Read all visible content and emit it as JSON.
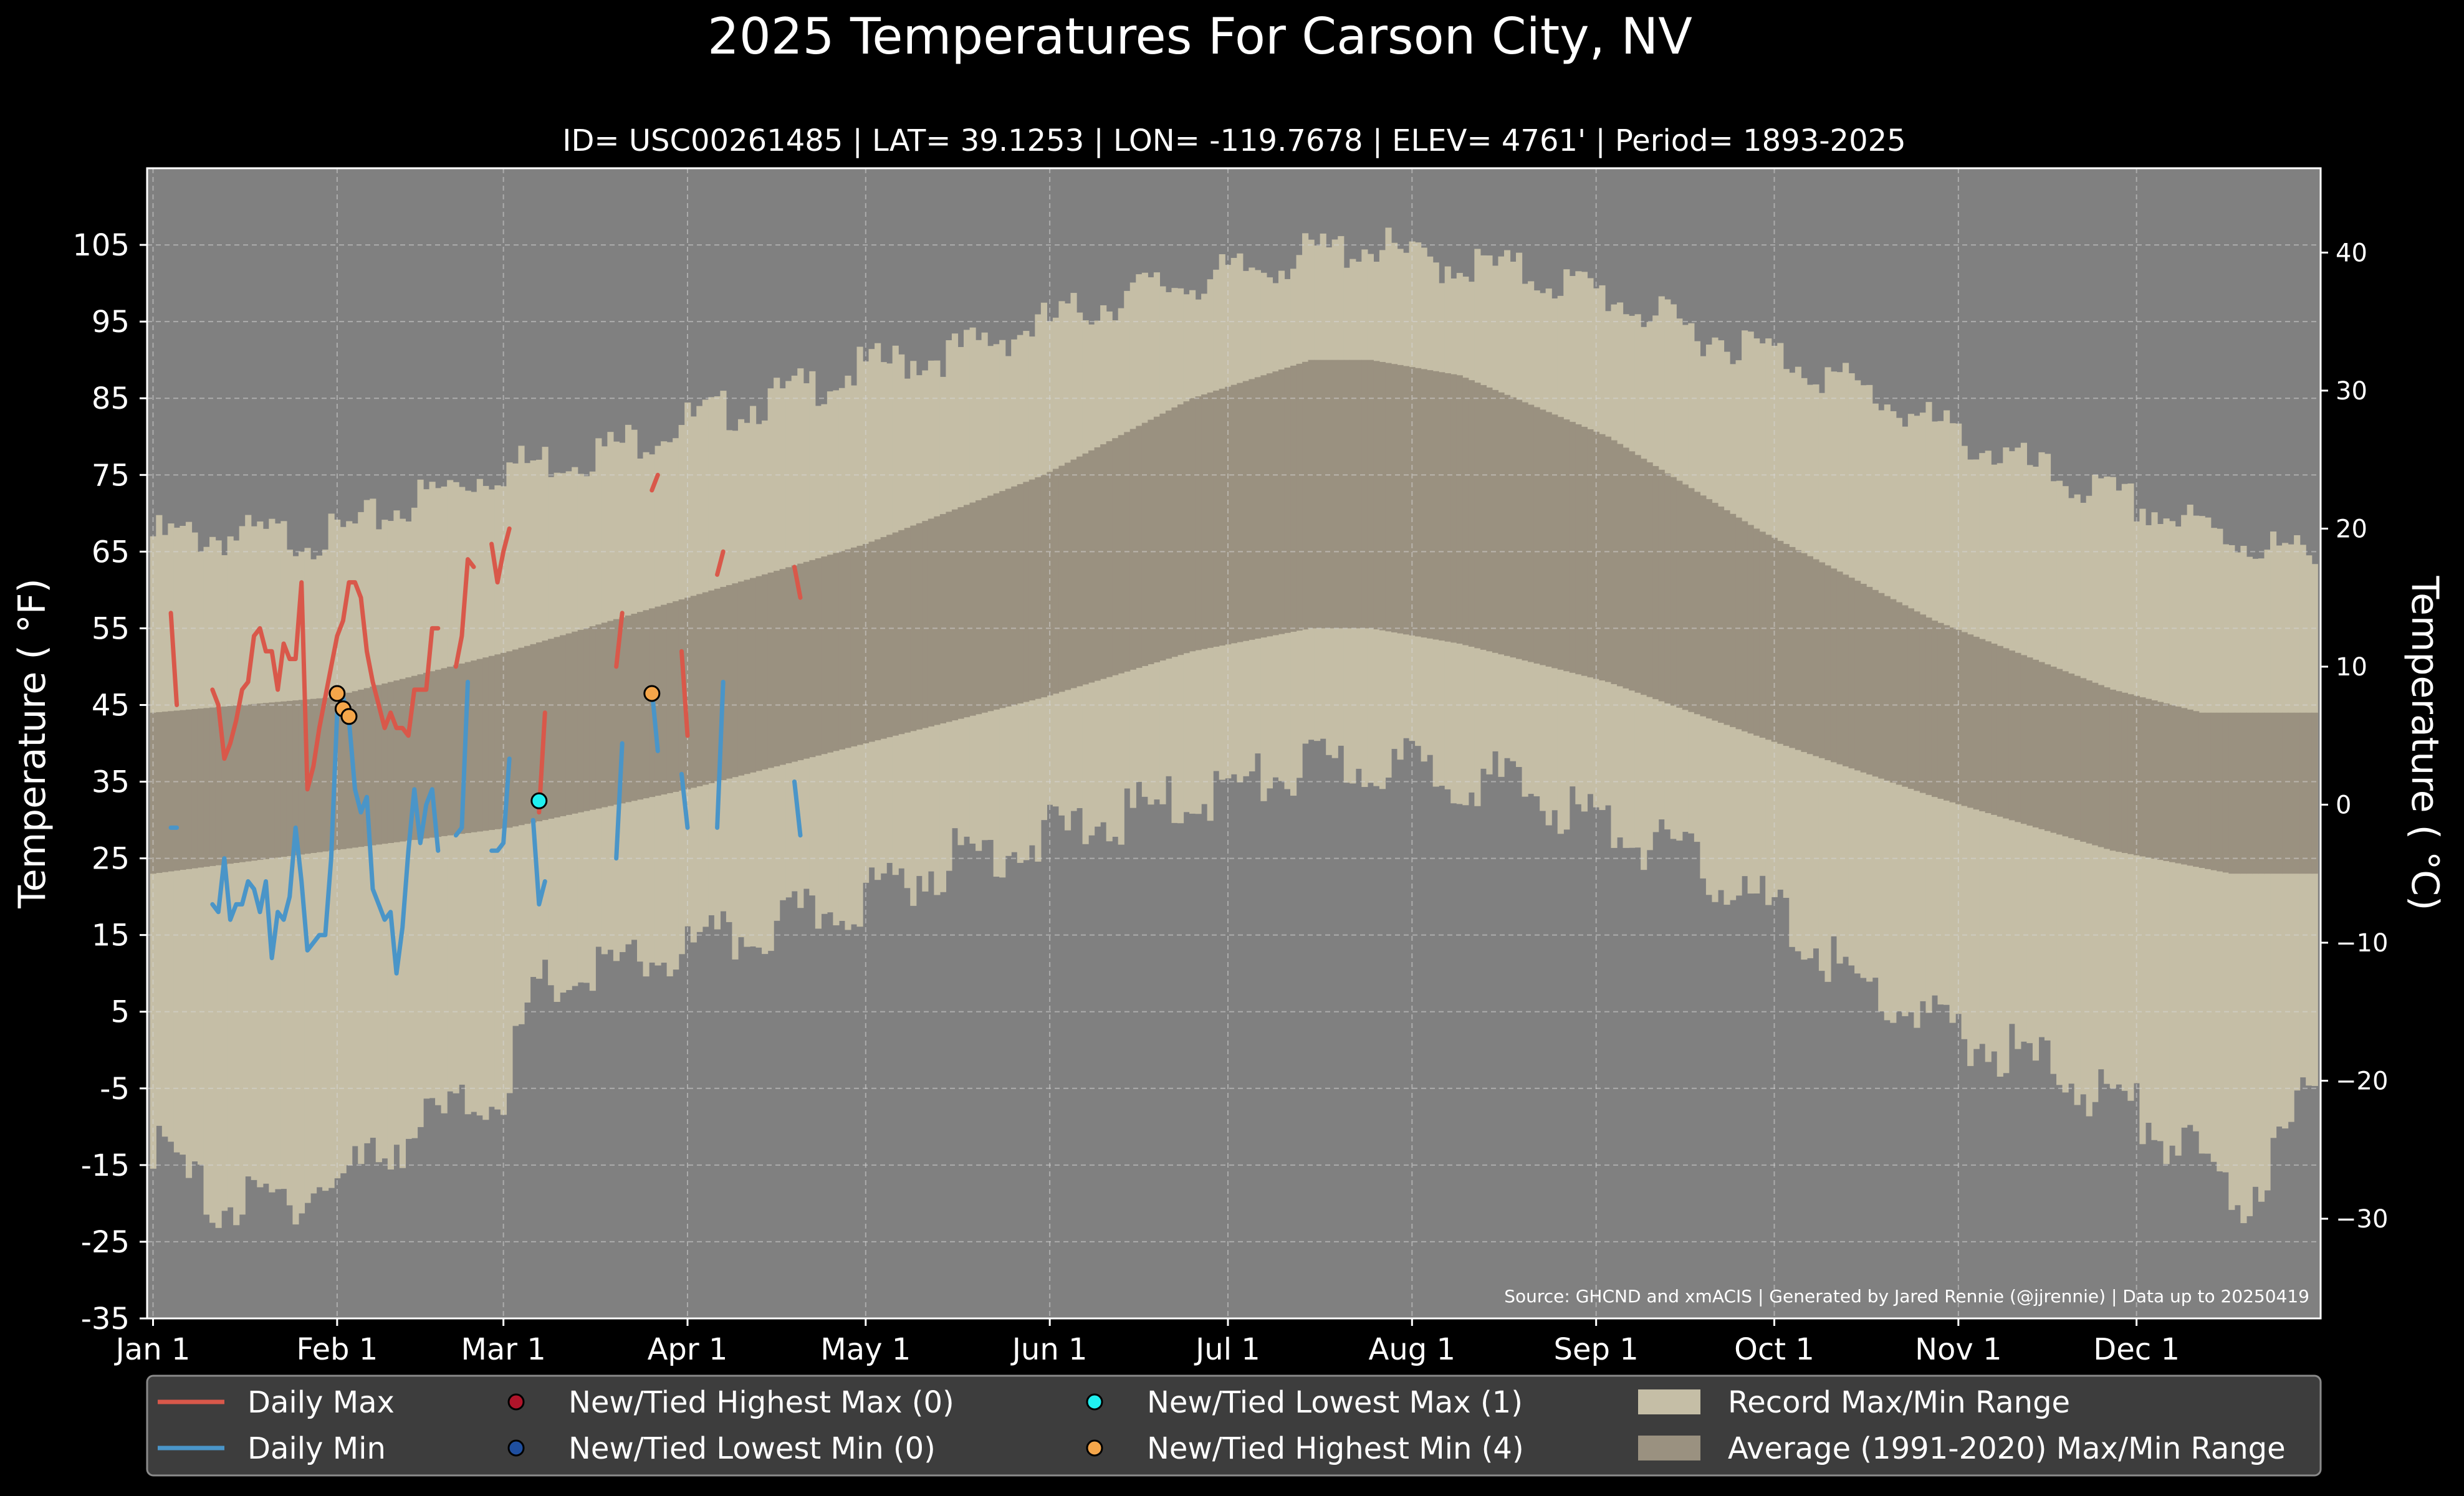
{
  "chart_data": {
    "type": "area",
    "title": "2025 Temperatures For Carson City, NV",
    "subtitle": "ID= USC00261485 | LAT= 39.1253 | LON= -119.7678 | ELEV= 4761' | Period= 1893-2025",
    "ylabel": "Temperature ( $^\\circ$F)",
    "ylabel_display": "Temperature ( °F)",
    "ylabel_right": "Temperature ( °C)",
    "source": "Source: GHCND and xmACIS | Generated by Jared Rennie (@jjrennie) | Data up to 20250419",
    "ylim": [
      -35,
      115
    ],
    "xlim": [
      -1,
      365
    ],
    "yticks": [
      -35,
      -25,
      -15,
      -5,
      5,
      15,
      25,
      35,
      45,
      55,
      65,
      75,
      85,
      95,
      105
    ],
    "yticks_right": [
      -30,
      -20,
      -10,
      0,
      10,
      20,
      30,
      40
    ],
    "xticks": [
      {
        "day": 0,
        "label": "Jan 1"
      },
      {
        "day": 31,
        "label": "Feb 1"
      },
      {
        "day": 59,
        "label": "Mar 1"
      },
      {
        "day": 90,
        "label": "Apr 1"
      },
      {
        "day": 120,
        "label": "May 1"
      },
      {
        "day": 151,
        "label": "Jun 1"
      },
      {
        "day": 181,
        "label": "Jul 1"
      },
      {
        "day": 212,
        "label": "Aug 1"
      },
      {
        "day": 243,
        "label": "Sep 1"
      },
      {
        "day": 273,
        "label": "Oct 1"
      },
      {
        "day": 304,
        "label": "Nov 1"
      },
      {
        "day": 334,
        "label": "Dec 1"
      }
    ],
    "grid": true,
    "legend_position": "bottom",
    "colors": {
      "background": "#000000",
      "plot_bg": "#808080",
      "record_range": "#C5BEA6",
      "normal_range": "#9A9180",
      "daily_max": "#D9584A",
      "daily_min": "#4A95C8",
      "highest_max": "#B0142A",
      "lowest_min": "#1F4FA0",
      "lowest_max": "#20F0F0",
      "highest_min": "#F5A64A"
    },
    "record_max_anchors": [
      [
        0,
        67
      ],
      [
        15,
        67
      ],
      [
        31,
        67
      ],
      [
        45,
        72
      ],
      [
        59,
        76
      ],
      [
        75,
        78
      ],
      [
        90,
        82
      ],
      [
        105,
        85
      ],
      [
        120,
        89
      ],
      [
        135,
        91
      ],
      [
        151,
        95
      ],
      [
        166,
        99
      ],
      [
        181,
        101
      ],
      [
        196,
        104
      ],
      [
        206,
        105
      ],
      [
        212,
        103
      ],
      [
        227,
        102
      ],
      [
        243,
        99
      ],
      [
        258,
        94
      ],
      [
        273,
        91
      ],
      [
        288,
        86
      ],
      [
        304,
        80
      ],
      [
        319,
        75
      ],
      [
        334,
        71
      ],
      [
        349,
        67
      ],
      [
        364,
        64
      ]
    ],
    "record_min_anchors": [
      [
        0,
        -12
      ],
      [
        10,
        -20
      ],
      [
        20,
        -20
      ],
      [
        31,
        -17
      ],
      [
        45,
        -10
      ],
      [
        59,
        -5
      ],
      [
        65,
        8
      ],
      [
        75,
        10
      ],
      [
        90,
        13
      ],
      [
        105,
        16
      ],
      [
        120,
        20
      ],
      [
        135,
        25
      ],
      [
        151,
        28
      ],
      [
        166,
        31
      ],
      [
        181,
        34
      ],
      [
        196,
        37
      ],
      [
        212,
        37
      ],
      [
        227,
        35
      ],
      [
        243,
        30
      ],
      [
        258,
        25
      ],
      [
        273,
        18
      ],
      [
        288,
        8
      ],
      [
        304,
        2
      ],
      [
        319,
        -2
      ],
      [
        334,
        -8
      ],
      [
        344,
        -14
      ],
      [
        352,
        -20
      ],
      [
        364,
        -5
      ]
    ],
    "normal_max_anchors": [
      [
        0,
        44
      ],
      [
        30,
        46
      ],
      [
        60,
        52
      ],
      [
        90,
        59
      ],
      [
        120,
        66
      ],
      [
        150,
        75
      ],
      [
        175,
        85
      ],
      [
        195,
        90
      ],
      [
        205,
        90
      ],
      [
        220,
        88
      ],
      [
        245,
        80
      ],
      [
        270,
        68
      ],
      [
        300,
        56
      ],
      [
        330,
        47
      ],
      [
        345,
        44
      ],
      [
        364,
        44
      ]
    ],
    "normal_min_anchors": [
      [
        0,
        23
      ],
      [
        30,
        26
      ],
      [
        60,
        29
      ],
      [
        90,
        34
      ],
      [
        120,
        40
      ],
      [
        150,
        46
      ],
      [
        175,
        52
      ],
      [
        195,
        55
      ],
      [
        205,
        55
      ],
      [
        220,
        53
      ],
      [
        245,
        48
      ],
      [
        270,
        41
      ],
      [
        300,
        33
      ],
      [
        330,
        26
      ],
      [
        350,
        23
      ],
      [
        364,
        23
      ]
    ],
    "series": [
      {
        "name": "Daily Max",
        "segments": [
          [
            [
              3,
              57
            ],
            [
              4,
              45
            ]
          ],
          [
            [
              10,
              47
            ],
            [
              11,
              45
            ],
            [
              12,
              38
            ],
            [
              13,
              40
            ],
            [
              14,
              43
            ],
            [
              15,
              47
            ],
            [
              16,
              48
            ],
            [
              17,
              54
            ],
            [
              18,
              55
            ],
            [
              19,
              52
            ],
            [
              20,
              52
            ],
            [
              21,
              47
            ],
            [
              22,
              53
            ],
            [
              23,
              51
            ],
            [
              24,
              51
            ],
            [
              25,
              61
            ],
            [
              26,
              34
            ],
            [
              27,
              37
            ],
            [
              28,
              42
            ],
            [
              29,
              46
            ],
            [
              30,
              50
            ],
            [
              31,
              54
            ],
            [
              32,
              56
            ],
            [
              33,
              61
            ],
            [
              34,
              61
            ],
            [
              35,
              59
            ],
            [
              36,
              52
            ],
            [
              37,
              48
            ],
            [
              38,
              45
            ],
            [
              39,
              42
            ],
            [
              40,
              44
            ],
            [
              41,
              42
            ],
            [
              42,
              42
            ],
            [
              43,
              41
            ],
            [
              44,
              47
            ],
            [
              45,
              47
            ],
            [
              46,
              47
            ],
            [
              47,
              55
            ],
            [
              48,
              55
            ]
          ],
          [
            [
              51,
              50
            ],
            [
              52,
              54
            ],
            [
              53,
              64
            ],
            [
              54,
              63
            ]
          ],
          [
            [
              57,
              66
            ],
            [
              58,
              61
            ],
            [
              59,
              65
            ],
            [
              60,
              68
            ]
          ],
          [
            [
              65,
              31
            ],
            [
              66,
              44
            ]
          ],
          [
            [
              78,
              50
            ],
            [
              79,
              57
            ]
          ],
          [
            [
              84,
              73
            ],
            [
              85,
              75
            ]
          ],
          [
            [
              89,
              52
            ],
            [
              90,
              41
            ]
          ],
          [
            [
              95,
              62
            ],
            [
              96,
              65
            ]
          ],
          [
            [
              108,
              63
            ],
            [
              109,
              59
            ]
          ]
        ]
      },
      {
        "name": "Daily Min",
        "segments": [
          [
            [
              3,
              29
            ],
            [
              4,
              29
            ]
          ],
          [
            [
              10,
              19
            ],
            [
              11,
              18
            ],
            [
              12,
              25
            ],
            [
              13,
              17
            ],
            [
              14,
              19
            ],
            [
              15,
              19
            ],
            [
              16,
              22
            ],
            [
              17,
              21
            ],
            [
              18,
              18
            ],
            [
              19,
              22
            ],
            [
              20,
              12
            ],
            [
              21,
              18
            ],
            [
              22,
              17
            ],
            [
              23,
              20
            ],
            [
              24,
              29
            ],
            [
              25,
              22
            ],
            [
              26,
              13
            ],
            [
              27,
              14
            ],
            [
              28,
              15
            ],
            [
              29,
              15
            ],
            [
              30,
              25
            ],
            [
              31,
              44
            ],
            [
              32,
              46
            ],
            [
              33,
              43
            ],
            [
              34,
              34
            ],
            [
              35,
              31
            ],
            [
              36,
              33
            ],
            [
              37,
              21
            ],
            [
              38,
              19
            ],
            [
              39,
              17
            ],
            [
              40,
              18
            ],
            [
              41,
              10
            ],
            [
              42,
              16
            ],
            [
              43,
              26
            ],
            [
              44,
              34
            ],
            [
              45,
              27
            ],
            [
              46,
              32
            ],
            [
              47,
              34
            ],
            [
              48,
              26
            ]
          ],
          [
            [
              51,
              28
            ],
            [
              52,
              29
            ],
            [
              53,
              48
            ]
          ],
          [
            [
              57,
              26
            ],
            [
              58,
              26
            ],
            [
              59,
              27
            ],
            [
              60,
              38
            ]
          ],
          [
            [
              64,
              30
            ],
            [
              65,
              19
            ],
            [
              66,
              22
            ]
          ],
          [
            [
              78,
              25
            ],
            [
              79,
              40
            ]
          ],
          [
            [
              84,
              47
            ],
            [
              85,
              39
            ]
          ],
          [
            [
              89,
              36
            ],
            [
              90,
              29
            ]
          ],
          [
            [
              95,
              29
            ],
            [
              96,
              48
            ]
          ],
          [
            [
              108,
              35
            ],
            [
              109,
              28
            ]
          ]
        ]
      }
    ],
    "markers": [
      {
        "name": "New/Tied Lowest Max",
        "x": 65,
        "y": 32.5
      },
      {
        "name": "New/Tied Highest Min",
        "x": 31,
        "y": 46.5
      },
      {
        "name": "New/Tied Highest Min",
        "x": 32,
        "y": 44.5
      },
      {
        "name": "New/Tied Highest Min",
        "x": 33,
        "y": 43.5
      },
      {
        "name": "New/Tied Highest Min",
        "x": 84,
        "y": 46.5
      }
    ]
  },
  "legend": [
    {
      "label": "Daily Max",
      "kind": "line",
      "color": "#D9584A"
    },
    {
      "label": "Daily Min",
      "kind": "line",
      "color": "#4A95C8"
    },
    {
      "label": "New/Tied Highest Max (0)",
      "kind": "dot",
      "color": "#B0142A"
    },
    {
      "label": "New/Tied Lowest Min (0)",
      "kind": "dot",
      "color": "#1F4FA0"
    },
    {
      "label": "New/Tied Lowest Max (1)",
      "kind": "dot",
      "color": "#20F0F0"
    },
    {
      "label": "New/Tied Highest Min (4)",
      "kind": "dot",
      "color": "#F5A64A"
    },
    {
      "label": "Record Max/Min Range",
      "kind": "patch",
      "color": "#C5BEA6"
    },
    {
      "label": "Average (1991-2020) Max/Min Range",
      "kind": "patch",
      "color": "#9A9180"
    }
  ]
}
